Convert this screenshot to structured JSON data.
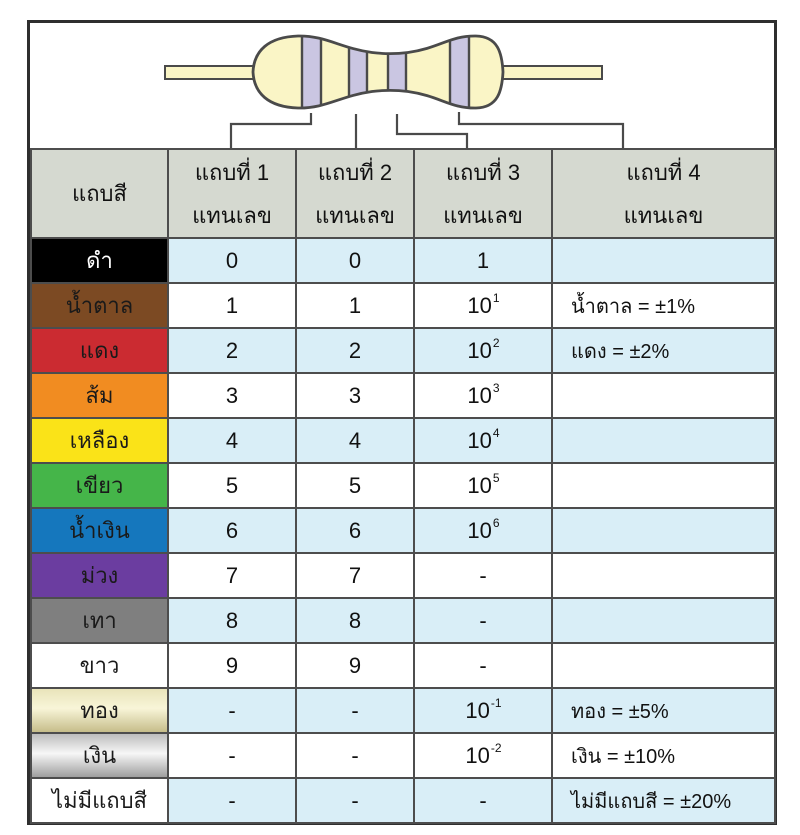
{
  "colors": {
    "frame_border": "#2f2f2f",
    "grid_line": "#4d4d4d",
    "header_bg": "#d5d9d0",
    "row_alt": "#d9eef7",
    "row_plain": "#ffffff",
    "resistor_body": "#faf5c6",
    "resistor_band": "#cac6e2",
    "outline": "#4a4a4a",
    "text": "#111111"
  },
  "resistor": {
    "description-name": "four-band-resistor-illustration",
    "band_count": 4
  },
  "table": {
    "header": [
      {
        "line1": "แถบสี",
        "line2": ""
      },
      {
        "line1": "แถบที่ 1",
        "line2": "แทนเลข"
      },
      {
        "line1": "แถบที่ 2",
        "line2": "แทนเลข"
      },
      {
        "line1": "แถบที่ 3",
        "line2": "แทนเลข"
      },
      {
        "line1": "แถบที่ 4",
        "line2": "แทนเลข"
      }
    ],
    "rows": [
      {
        "label": "ดำ",
        "swatch": [
          "#000000"
        ],
        "label_color": "#ffffff",
        "band1": "0",
        "band2": "0",
        "band3": "1",
        "band4": ""
      },
      {
        "label": "น้ำตาล",
        "swatch": [
          "#7c4a23"
        ],
        "label_color": "#1a1a1a",
        "band1": "1",
        "band2": "1",
        "band3": "10^1",
        "band4": "น้ำตาล = ±1%"
      },
      {
        "label": "แดง",
        "swatch": [
          "#cb2b31"
        ],
        "label_color": "#1a1a1a",
        "band1": "2",
        "band2": "2",
        "band3": "10^2",
        "band4": "แดง = ±2%"
      },
      {
        "label": "ส้ม",
        "swatch": [
          "#f18c21"
        ],
        "label_color": "#1a1a1a",
        "band1": "3",
        "band2": "3",
        "band3": "10^3",
        "band4": ""
      },
      {
        "label": "เหลือง",
        "swatch": [
          "#fae318"
        ],
        "label_color": "#1a1a1a",
        "band1": "4",
        "band2": "4",
        "band3": "10^4",
        "band4": ""
      },
      {
        "label": "เขียว",
        "swatch": [
          "#45b549"
        ],
        "label_color": "#1a1a1a",
        "band1": "5",
        "band2": "5",
        "band3": "10^5",
        "band4": ""
      },
      {
        "label": "น้ำเงิน",
        "swatch": [
          "#1577bd"
        ],
        "label_color": "#1a1a1a",
        "band1": "6",
        "band2": "6",
        "band3": "10^6",
        "band4": ""
      },
      {
        "label": "ม่วง",
        "swatch": [
          "#6b3da0"
        ],
        "label_color": "#1a1a1a",
        "band1": "7",
        "band2": "7",
        "band3": "-",
        "band4": ""
      },
      {
        "label": "เทา",
        "swatch": [
          "#7f7f7f"
        ],
        "label_color": "#1a1a1a",
        "band1": "8",
        "band2": "8",
        "band3": "-",
        "band4": ""
      },
      {
        "label": "ขาว",
        "swatch": [
          "#ffffff"
        ],
        "label_color": "#1a1a1a",
        "band1": "9",
        "band2": "9",
        "band3": "-",
        "band4": ""
      },
      {
        "label": "ทอง",
        "swatch": [
          "#e9e4ba",
          "#f8f5d8",
          "#c6bd8a"
        ],
        "label_color": "#1a1a1a",
        "band1": "-",
        "band2": "-",
        "band3": "10^-1",
        "band4": "ทอง = ±5%"
      },
      {
        "label": "เงิน",
        "swatch": [
          "#bdbdbd",
          "#f7f7f7",
          "#9f9f9f"
        ],
        "label_color": "#1a1a1a",
        "band1": "-",
        "band2": "-",
        "band3": "10^-2",
        "band4": "เงิน = ±10%"
      },
      {
        "label": "ไม่มีแถบสี",
        "swatch": [
          "#ffffff"
        ],
        "label_color": "#1a1a1a",
        "band1": "-",
        "band2": "-",
        "band3": "-",
        "band4": "ไม่มีแถบสี = ±20%"
      }
    ]
  }
}
